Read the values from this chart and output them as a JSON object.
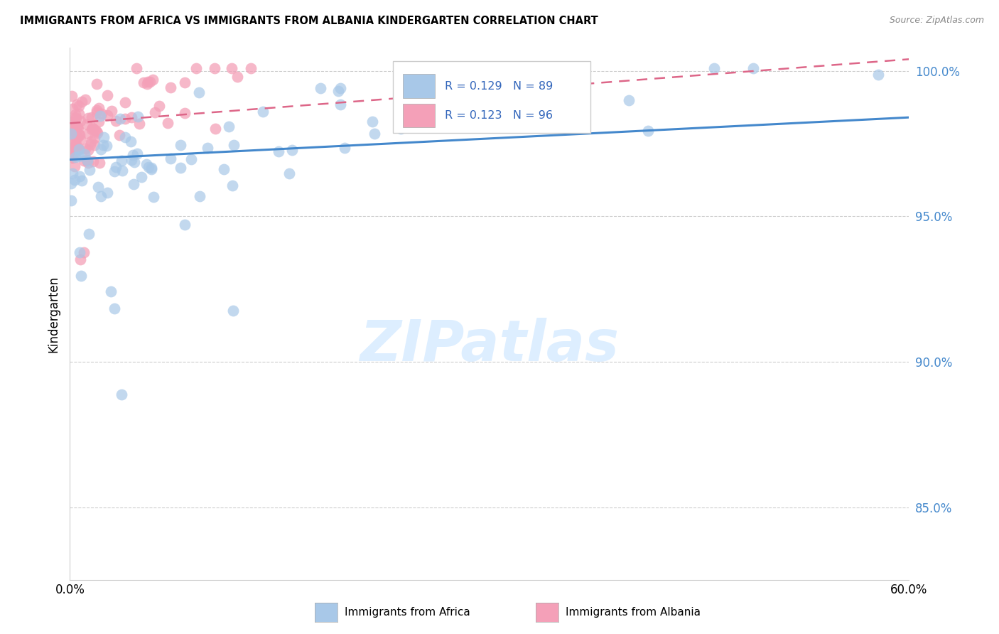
{
  "title": "IMMIGRANTS FROM AFRICA VS IMMIGRANTS FROM ALBANIA KINDERGARTEN CORRELATION CHART",
  "source": "Source: ZipAtlas.com",
  "ylabel": "Kindergarten",
  "legend_africa": "Immigrants from Africa",
  "legend_albania": "Immigrants from Albania",
  "R_africa": 0.129,
  "N_africa": 89,
  "R_albania": 0.123,
  "N_albania": 96,
  "color_africa": "#a8c8e8",
  "color_albania": "#f4a0b8",
  "trendline_africa_color": "#4488cc",
  "trendline_albania_color": "#dd6688",
  "ylim": [
    0.825,
    1.008
  ],
  "xlim": [
    0.0,
    0.6
  ],
  "yticks": [
    0.85,
    0.9,
    0.95,
    1.0
  ],
  "ytick_labels": [
    "85.0%",
    "90.0%",
    "95.0%",
    "100.0%"
  ],
  "grid_color": "#cccccc",
  "watermark": "ZIPatlas",
  "watermark_color": "#ddeeff",
  "africa_trend": [
    0.9695,
    0.984
  ],
  "albania_trend": [
    0.982,
    1.004
  ],
  "seed": 12345
}
